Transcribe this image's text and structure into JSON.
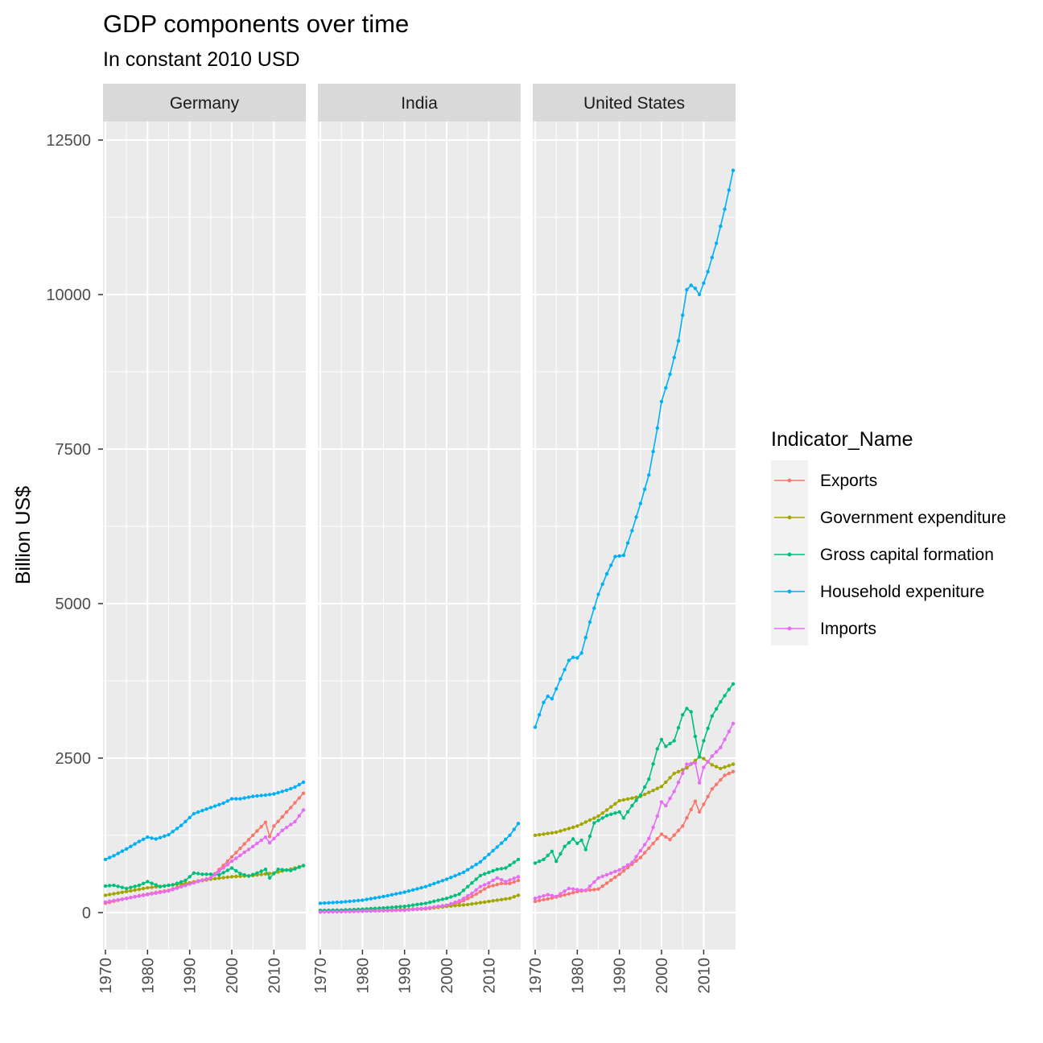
{
  "chart_data": {
    "type": "line",
    "title": "GDP components over time",
    "subtitle": "In constant 2010 USD",
    "xlabel": "",
    "ylabel": "Billion US$",
    "xlim": [
      1970,
      2017
    ],
    "ylim": [
      -600,
      12800
    ],
    "y_ticks": [
      0,
      2500,
      5000,
      7500,
      10000,
      12500
    ],
    "x_ticks": [
      1970,
      1980,
      1990,
      2000,
      2010
    ],
    "grid": true,
    "legend": {
      "title": "Indicator_Name",
      "position": "right"
    },
    "colors": {
      "Exports": "#F8766D",
      "Government expenditure": "#A3A500",
      "Gross capital formation": "#00BF7D",
      "Household expenditure": "#00B0F6",
      "Imports": "#E76BF3"
    },
    "legend_labels": [
      "Exports",
      "Government expenditure",
      "Gross capital formation",
      "Household expeniture",
      "Imports"
    ],
    "facets": [
      {
        "name": "Germany",
        "series": [
          {
            "name": "Exports",
            "x": [
              1970,
              1975,
              1980,
              1985,
              1990,
              1995,
              2000,
              2005,
              2008,
              2009,
              2010,
              2014,
              2017
            ],
            "y": [
              150,
              230,
              300,
              360,
              480,
              560,
              900,
              1250,
              1460,
              1230,
              1400,
              1700,
              1930
            ]
          },
          {
            "name": "Government expenditure",
            "x": [
              1970,
              1975,
              1980,
              1985,
              1990,
              1995,
              2000,
              2005,
              2010,
              2015,
              2017
            ],
            "y": [
              280,
              340,
              400,
              440,
              480,
              540,
              580,
              600,
              640,
              720,
              760
            ]
          },
          {
            "name": "Gross capital formation",
            "x": [
              1970,
              1972,
              1975,
              1978,
              1980,
              1983,
              1986,
              1989,
              1991,
              1993,
              1995,
              1997,
              2000,
              2002,
              2004,
              2006,
              2008,
              2009,
              2011,
              2014,
              2017
            ],
            "y": [
              430,
              440,
              390,
              440,
              500,
              420,
              450,
              520,
              640,
              620,
              620,
              610,
              720,
              630,
              590,
              640,
              700,
              560,
              700,
              680,
              760
            ]
          },
          {
            "name": "Household expenditure",
            "x": [
              1970,
              1972,
              1975,
              1978,
              1980,
              1982,
              1985,
              1988,
              1991,
              1995,
              1998,
              2000,
              2002,
              2005,
              2008,
              2010,
              2013,
              2015,
              2017
            ],
            "y": [
              860,
              920,
              1030,
              1150,
              1220,
              1190,
              1260,
              1410,
              1600,
              1700,
              1770,
              1840,
              1840,
              1880,
              1900,
              1920,
              1980,
              2030,
              2110
            ]
          },
          {
            "name": "Imports",
            "x": [
              1970,
              1975,
              1980,
              1985,
              1990,
              1995,
              2000,
              2005,
              2008,
              2009,
              2012,
              2015,
              2017
            ],
            "y": [
              170,
              230,
              290,
              350,
              460,
              560,
              830,
              1070,
              1220,
              1130,
              1330,
              1470,
              1660
            ]
          }
        ]
      },
      {
        "name": "India",
        "series": [
          {
            "name": "Exports",
            "x": [
              1970,
              1975,
              1980,
              1985,
              1990,
              1995,
              2000,
              2003,
              2006,
              2008,
              2010,
              2013,
              2015,
              2017
            ],
            "y": [
              10,
              15,
              22,
              30,
              40,
              60,
              100,
              160,
              260,
              340,
              420,
              470,
              470,
              520
            ]
          },
          {
            "name": "Government expenditure",
            "x": [
              1970,
              1980,
              1990,
              1995,
              2000,
              2005,
              2010,
              2015,
              2017
            ],
            "y": [
              15,
              30,
              50,
              70,
              100,
              130,
              180,
              230,
              280
            ]
          },
          {
            "name": "Gross capital formation",
            "x": [
              1970,
              1975,
              1980,
              1985,
              1990,
              1995,
              2000,
              2003,
              2006,
              2008,
              2010,
              2012,
              2014,
              2017
            ],
            "y": [
              35,
              40,
              55,
              75,
              100,
              150,
              230,
              300,
              480,
              600,
              650,
              700,
              720,
              860
            ]
          },
          {
            "name": "Household expenditure",
            "x": [
              1970,
              1975,
              1980,
              1985,
              1990,
              1995,
              2000,
              2004,
              2008,
              2012,
              2015,
              2017
            ],
            "y": [
              150,
              170,
              200,
              260,
              330,
              420,
              540,
              650,
              820,
              1060,
              1250,
              1440
            ]
          },
          {
            "name": "Imports",
            "x": [
              1970,
              1975,
              1980,
              1985,
              1990,
              1995,
              2000,
              2003,
              2006,
              2008,
              2010,
              2012,
              2014,
              2017
            ],
            "y": [
              10,
              15,
              22,
              30,
              40,
              70,
              120,
              190,
              310,
              420,
              480,
              560,
              500,
              580
            ]
          }
        ]
      },
      {
        "name": "United States",
        "series": [
          {
            "name": "Exports",
            "x": [
              1970,
              1975,
              1980,
              1985,
              1990,
              1995,
              2000,
              2002,
              2005,
              2008,
              2009,
              2012,
              2015,
              2017
            ],
            "y": [
              180,
              250,
              340,
              380,
              620,
              890,
              1270,
              1180,
              1400,
              1800,
              1630,
              2000,
              2220,
              2280
            ]
          },
          {
            "name": "Government expenditure",
            "x": [
              1970,
              1975,
              1980,
              1985,
              1990,
              1995,
              2000,
              2003,
              2006,
              2009,
              2010,
              2012,
              2014,
              2017
            ],
            "y": [
              1250,
              1300,
              1400,
              1560,
              1810,
              1880,
              2040,
              2250,
              2340,
              2520,
              2490,
              2390,
              2330,
              2400
            ]
          },
          {
            "name": "Gross capital formation",
            "x": [
              1970,
              1972,
              1974,
              1975,
              1977,
              1979,
              1980,
              1981,
              1982,
              1984,
              1987,
              1990,
              1991,
              1993,
              1995,
              1997,
              1999,
              2000,
              2001,
              2003,
              2005,
              2006,
              2007,
              2008,
              2009,
              2010,
              2012,
              2014,
              2016,
              2017
            ],
            "y": [
              800,
              860,
              990,
              830,
              1070,
              1190,
              1120,
              1170,
              1020,
              1450,
              1570,
              1630,
              1530,
              1730,
              1900,
              2160,
              2650,
              2800,
              2690,
              2780,
              3200,
              3300,
              3250,
              2850,
              2520,
              2780,
              3180,
              3410,
              3610,
              3700
            ]
          },
          {
            "name": "Household expenditure",
            "x": [
              1970,
              1972,
              1973,
              1974,
              1976,
              1978,
              1979,
              1980,
              1981,
              1983,
              1985,
              1987,
              1989,
              1990,
              1991,
              1993,
              1995,
              1997,
              1999,
              2000,
              2002,
              2004,
              2006,
              2007,
              2008,
              2009,
              2011,
              2013,
              2015,
              2016,
              2017
            ],
            "y": [
              3000,
              3400,
              3500,
              3460,
              3780,
              4080,
              4130,
              4120,
              4200,
              4700,
              5150,
              5480,
              5760,
              5770,
              5780,
              6180,
              6620,
              7080,
              7840,
              8270,
              8710,
              9250,
              10080,
              10150,
              10100,
              10000,
              10370,
              10830,
              11380,
              11690,
              12010
            ]
          },
          {
            "name": "Imports",
            "x": [
              1970,
              1973,
              1975,
              1978,
              1980,
              1982,
              1985,
              1990,
              1993,
              1995,
              1997,
              1999,
              2000,
              2001,
              2003,
              2006,
              2008,
              2009,
              2010,
              2012,
              2014,
              2017
            ],
            "y": [
              230,
              290,
              260,
              390,
              370,
              360,
              560,
              690,
              810,
              1000,
              1200,
              1560,
              1790,
              1730,
              1960,
              2400,
              2420,
              2100,
              2350,
              2530,
              2670,
              3060
            ]
          }
        ]
      }
    ]
  }
}
